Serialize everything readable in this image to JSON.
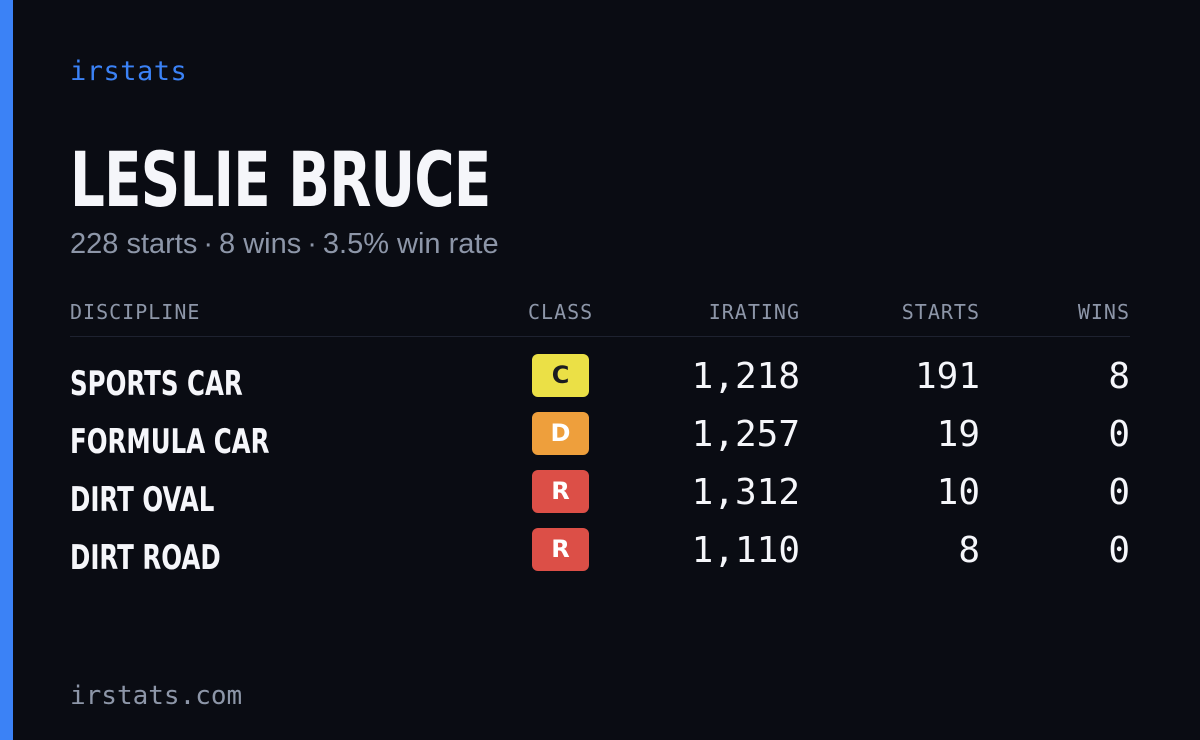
{
  "brand": "irstats",
  "driver": {
    "name": "LESLIE BRUCE"
  },
  "summary": {
    "starts": "228 starts",
    "wins": "8 wins",
    "win_rate": "3.5% win rate",
    "separator": "·"
  },
  "table": {
    "headers": {
      "discipline": "DISCIPLINE",
      "class": "CLASS",
      "irating": "IRATING",
      "starts": "STARTS",
      "wins": "WINS"
    },
    "rows": [
      {
        "discipline": "SPORTS CAR",
        "class": "C",
        "class_color": "#ebe046",
        "class_text_color": "#1b1c20",
        "irating": "1,218",
        "starts": "191",
        "wins": "8"
      },
      {
        "discipline": "FORMULA CAR",
        "class": "D",
        "class_color": "#ee9f3c",
        "class_text_color": "#ffffff",
        "irating": "1,257",
        "starts": "19",
        "wins": "0"
      },
      {
        "discipline": "DIRT OVAL",
        "class": "R",
        "class_color": "#dc4f47",
        "class_text_color": "#ffffff",
        "irating": "1,312",
        "starts": "10",
        "wins": "0"
      },
      {
        "discipline": "DIRT ROAD",
        "class": "R",
        "class_color": "#dc4f47",
        "class_text_color": "#ffffff",
        "irating": "1,110",
        "starts": "8",
        "wins": "0"
      }
    ]
  },
  "footer": "irstats.com",
  "colors": {
    "background": "#0a0c13",
    "accent": "#3b82f6",
    "muted_text": "#8d96a8",
    "primary_text": "#f5f6fa"
  }
}
